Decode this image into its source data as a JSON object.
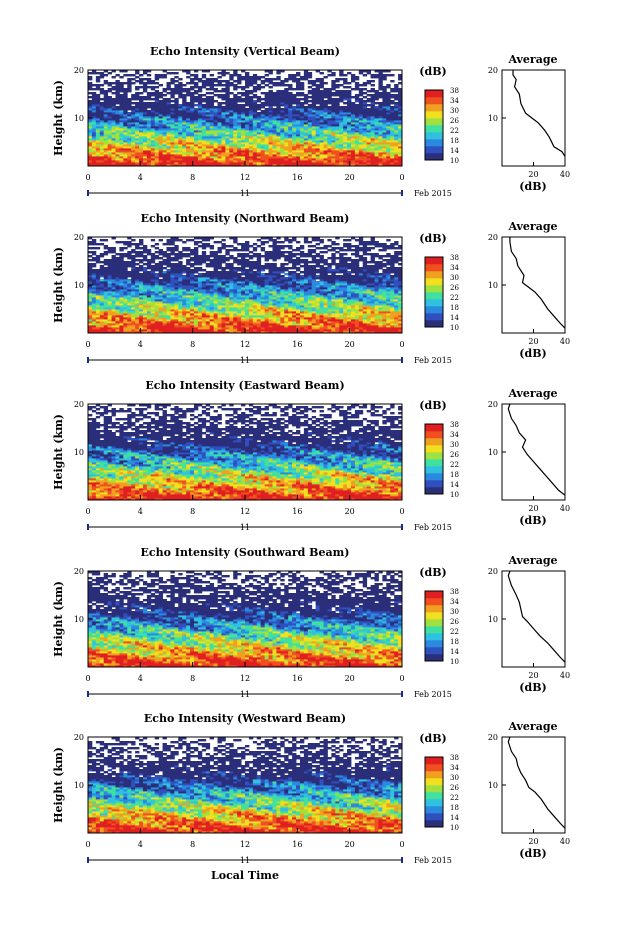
{
  "chart_data": [
    {
      "type": "heatmap",
      "title": "Echo Intensity (Vertical Beam)",
      "ylabel": "Height (km)",
      "y_ticks": [
        "20",
        "10"
      ],
      "x_ticks": [
        "0",
        "4",
        "8",
        "12",
        "16",
        "20",
        "0"
      ],
      "date_day": "11",
      "date_label": "Feb 2015",
      "colorbar_unit": "(dB)",
      "colorbar_ticks": [
        "38",
        "34",
        "30",
        "26",
        "22",
        "18",
        "14",
        "10"
      ],
      "avg_title": "Average",
      "avg_y_ticks": [
        "20",
        "10"
      ],
      "avg_x_ticks": [
        "20",
        "40"
      ],
      "avg_xlabel": "(dB)",
      "avg_profile": [
        [
          40,
          2
        ],
        [
          38,
          3
        ],
        [
          33,
          4
        ],
        [
          30,
          6
        ],
        [
          27,
          7.5
        ],
        [
          23,
          9
        ],
        [
          19,
          10
        ],
        [
          15,
          11
        ],
        [
          12,
          13
        ],
        [
          11,
          15
        ],
        [
          8,
          16.5
        ],
        [
          9,
          18
        ],
        [
          7,
          19
        ],
        [
          7,
          20
        ]
      ]
    },
    {
      "type": "heatmap",
      "title": "Echo Intensity (Northward Beam)",
      "ylabel": "Height (km)",
      "y_ticks": [
        "20",
        "10"
      ],
      "x_ticks": [
        "0",
        "4",
        "8",
        "12",
        "16",
        "20",
        "0"
      ],
      "date_day": "11",
      "date_label": "Feb 2015",
      "colorbar_unit": "(dB)",
      "colorbar_ticks": [
        "38",
        "34",
        "30",
        "26",
        "22",
        "18",
        "14",
        "10"
      ],
      "avg_title": "Average",
      "avg_y_ticks": [
        "20",
        "10"
      ],
      "avg_x_ticks": [
        "20",
        "40"
      ],
      "avg_xlabel": "(dB)",
      "avg_profile": [
        [
          40,
          1
        ],
        [
          37,
          2
        ],
        [
          33,
          3.5
        ],
        [
          29,
          5
        ],
        [
          25,
          7
        ],
        [
          21,
          8.5
        ],
        [
          17,
          9.5
        ],
        [
          13,
          10.5
        ],
        [
          14,
          12
        ],
        [
          10,
          14
        ],
        [
          9,
          15.5
        ],
        [
          6,
          17
        ],
        [
          5,
          19
        ],
        [
          5,
          20
        ]
      ]
    },
    {
      "type": "heatmap",
      "title": "Echo Intensity (Eastward Beam)",
      "ylabel": "Height (km)",
      "y_ticks": [
        "20",
        "10"
      ],
      "x_ticks": [
        "0",
        "4",
        "8",
        "12",
        "16",
        "20",
        "0"
      ],
      "date_day": "11",
      "date_label": "Feb 2015",
      "colorbar_unit": "(dB)",
      "colorbar_ticks": [
        "38",
        "34",
        "30",
        "26",
        "22",
        "18",
        "14",
        "10"
      ],
      "avg_title": "Average",
      "avg_y_ticks": [
        "20",
        "10"
      ],
      "avg_x_ticks": [
        "20",
        "40"
      ],
      "avg_xlabel": "(dB)",
      "avg_profile": [
        [
          40,
          1
        ],
        [
          36,
          2
        ],
        [
          32,
          3.5
        ],
        [
          28,
          5
        ],
        [
          24,
          6.5
        ],
        [
          20,
          8
        ],
        [
          16,
          9.5
        ],
        [
          13,
          11
        ],
        [
          15,
          12.5
        ],
        [
          11,
          14
        ],
        [
          9,
          15.5
        ],
        [
          6,
          17
        ],
        [
          4,
          19
        ],
        [
          5,
          20
        ]
      ]
    },
    {
      "type": "heatmap",
      "title": "Echo Intensity (Southward Beam)",
      "ylabel": "Height (km)",
      "y_ticks": [
        "20",
        "10"
      ],
      "x_ticks": [
        "0",
        "4",
        "8",
        "12",
        "16",
        "20",
        "0"
      ],
      "date_day": "11",
      "date_label": "Feb 2015",
      "colorbar_unit": "(dB)",
      "colorbar_ticks": [
        "38",
        "34",
        "30",
        "26",
        "22",
        "18",
        "14",
        "10"
      ],
      "avg_title": "Average",
      "avg_y_ticks": [
        "20",
        "10"
      ],
      "avg_x_ticks": [
        "20",
        "40"
      ],
      "avg_xlabel": "(dB)",
      "avg_profile": [
        [
          40,
          1
        ],
        [
          37,
          2
        ],
        [
          33,
          3.5
        ],
        [
          29,
          5
        ],
        [
          24,
          6.5
        ],
        [
          20,
          8
        ],
        [
          16,
          9.5
        ],
        [
          13,
          10.5
        ],
        [
          12,
          12
        ],
        [
          11,
          13.5
        ],
        [
          9,
          15
        ],
        [
          6,
          17
        ],
        [
          4,
          19
        ],
        [
          5,
          20
        ]
      ]
    },
    {
      "type": "heatmap",
      "title": "Echo Intensity (Westward Beam)",
      "ylabel": "Height (km)",
      "y_ticks": [
        "20",
        "10"
      ],
      "x_ticks": [
        "0",
        "4",
        "8",
        "12",
        "16",
        "20",
        "0"
      ],
      "date_day": "11",
      "date_label": "Feb 2015",
      "colorbar_unit": "(dB)",
      "colorbar_ticks": [
        "38",
        "34",
        "30",
        "26",
        "22",
        "18",
        "14",
        "10"
      ],
      "avg_title": "Average",
      "avg_y_ticks": [
        "20",
        "10"
      ],
      "avg_x_ticks": [
        "20",
        "40"
      ],
      "avg_xlabel": "(dB)",
      "avg_profile": [
        [
          40,
          1
        ],
        [
          37,
          2
        ],
        [
          33,
          3.5
        ],
        [
          29,
          5
        ],
        [
          25,
          7
        ],
        [
          21,
          8.5
        ],
        [
          17,
          9.5
        ],
        [
          15,
          11
        ],
        [
          12,
          12.5
        ],
        [
          10,
          14
        ],
        [
          9,
          15.5
        ],
        [
          6,
          17
        ],
        [
          4,
          19
        ],
        [
          5,
          20
        ]
      ]
    }
  ],
  "x_axis_label": "Local Time",
  "colors": {
    "scale": [
      "#2b2f7a",
      "#3050c0",
      "#2a8ae0",
      "#30c0e0",
      "#40e0a0",
      "#a0e040",
      "#f0e020",
      "#f0a020",
      "#f05020",
      "#e02020"
    ]
  }
}
